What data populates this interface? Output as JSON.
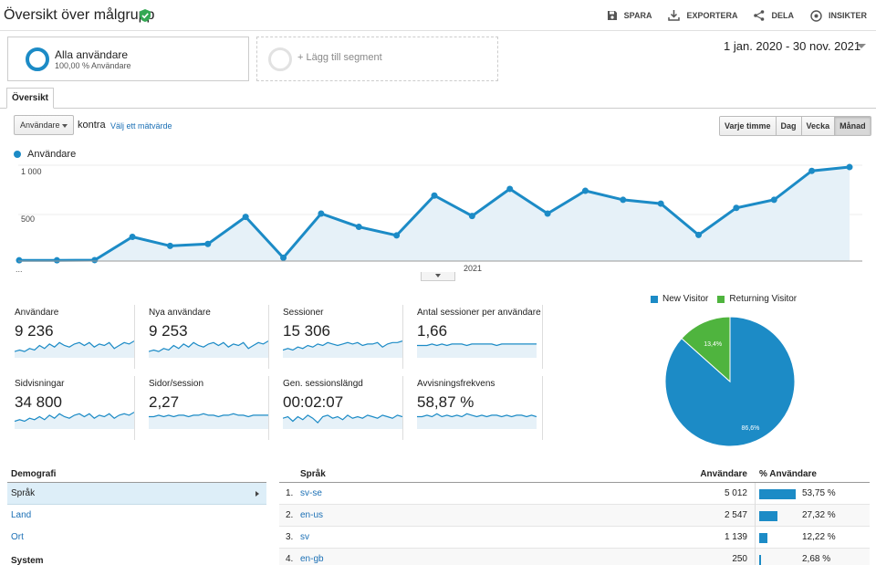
{
  "header": {
    "title": "Översikt över målgrupp",
    "actions": [
      {
        "label": "SPARA",
        "icon": "save-icon"
      },
      {
        "label": "EXPORTERA",
        "icon": "export-icon"
      },
      {
        "label": "DELA",
        "icon": "share-icon"
      },
      {
        "label": "INSIKTER",
        "icon": "insights-icon"
      }
    ]
  },
  "segments": {
    "all": {
      "name": "Alla användare",
      "sub": "100,00 % Användare"
    },
    "add_label": "+ Lägg till segment"
  },
  "daterange": "1 jan. 2020 - 30 nov. 2021",
  "tab": "Översikt",
  "controls": {
    "metric": "Användare",
    "kontra": "kontra",
    "pick_metric": "Välj ett mätvärde",
    "granularity": [
      "Varje timme",
      "Dag",
      "Vecka",
      "Månad"
    ],
    "granularity_active": "Månad"
  },
  "chart_data": {
    "type": "area",
    "series": [
      {
        "name": "Användare",
        "values": [
          8,
          8,
          10,
          255,
          160,
          180,
          465,
          35,
          500,
          360,
          270,
          690,
          475,
          760,
          500,
          740,
          645,
          605,
          275,
          560,
          645,
          950,
          990
        ]
      }
    ],
    "x_labels": [
      "...",
      "2021"
    ],
    "y_ticks": [
      "1 000",
      "500"
    ],
    "ylim": [
      0,
      1000
    ],
    "color": "#1c8bc6"
  },
  "tiles": [
    {
      "label": "Användare",
      "value": "9 236",
      "spark": [
        3,
        4,
        3,
        5,
        4,
        7,
        5,
        8,
        6,
        9,
        7,
        6,
        8,
        9,
        7,
        9,
        6,
        8,
        7,
        9,
        5,
        7,
        9,
        8,
        10
      ]
    },
    {
      "label": "Nya användare",
      "value": "9 253",
      "spark": [
        3,
        4,
        3,
        5,
        4,
        7,
        5,
        8,
        6,
        9,
        7,
        6,
        8,
        9,
        7,
        9,
        6,
        8,
        7,
        9,
        5,
        7,
        9,
        8,
        10
      ]
    },
    {
      "label": "Sessioner",
      "value": "15 306",
      "spark": [
        4,
        5,
        4,
        6,
        5,
        7,
        6,
        8,
        7,
        9,
        8,
        7,
        8,
        9,
        8,
        9,
        7,
        8,
        8,
        9,
        6,
        8,
        9,
        9,
        10
      ]
    },
    {
      "label": "Antal sessioner per användare",
      "value": "1,66",
      "spark": [
        7,
        7,
        7,
        8,
        7,
        8,
        7,
        8,
        8,
        8,
        7,
        8,
        8,
        8,
        8,
        8,
        7,
        8,
        8,
        8,
        8,
        8,
        8,
        8,
        8
      ]
    },
    {
      "label": "Sidvisningar",
      "value": "34 800",
      "spark": [
        4,
        5,
        4,
        6,
        5,
        7,
        5,
        8,
        6,
        9,
        7,
        6,
        8,
        9,
        7,
        9,
        6,
        8,
        7,
        9,
        6,
        8,
        9,
        8,
        10
      ]
    },
    {
      "label": "Sidor/session",
      "value": "2,27",
      "spark": [
        7,
        7,
        8,
        7,
        8,
        7,
        8,
        8,
        7,
        8,
        8,
        9,
        8,
        8,
        7,
        8,
        8,
        9,
        8,
        8,
        7,
        8,
        8,
        8,
        8
      ]
    },
    {
      "label": "Gen. sessionslängd",
      "value": "00:02:07",
      "spark": [
        6,
        7,
        4,
        7,
        5,
        8,
        6,
        3,
        7,
        8,
        6,
        7,
        5,
        8,
        6,
        7,
        6,
        8,
        7,
        6,
        8,
        7,
        6,
        8,
        7
      ]
    },
    {
      "label": "Avvisningsfrekvens",
      "value": "58,87 %",
      "spark": [
        7,
        7,
        8,
        7,
        9,
        7,
        8,
        7,
        8,
        7,
        9,
        8,
        7,
        8,
        7,
        8,
        8,
        7,
        8,
        7,
        8,
        8,
        7,
        8,
        7
      ]
    }
  ],
  "pie": {
    "slices": [
      {
        "name": "New Visitor",
        "value": 86.6,
        "label": "86,6%",
        "color": "#1c8bc6"
      },
      {
        "name": "Returning Visitor",
        "value": 13.4,
        "label": "13,4%",
        "color": "#4fb43e"
      }
    ]
  },
  "demografi": {
    "heading": "Demografi",
    "items": [
      "Språk",
      "Land",
      "Ort"
    ],
    "section2": "System"
  },
  "table": {
    "headers": {
      "dimension": "Språk",
      "users": "Användare",
      "pct": "% Användare"
    },
    "rows": [
      {
        "idx": "1.",
        "lang": "sv-se",
        "users": "5 012",
        "pct": "53,75 %",
        "share": 53.75
      },
      {
        "idx": "2.",
        "lang": "en-us",
        "users": "2 547",
        "pct": "27,32 %",
        "share": 27.32
      },
      {
        "idx": "3.",
        "lang": "sv",
        "users": "1 139",
        "pct": "12,22 %",
        "share": 12.22
      },
      {
        "idx": "4.",
        "lang": "en-gb",
        "users": "250",
        "pct": "2,68 %",
        "share": 2.68
      }
    ]
  }
}
